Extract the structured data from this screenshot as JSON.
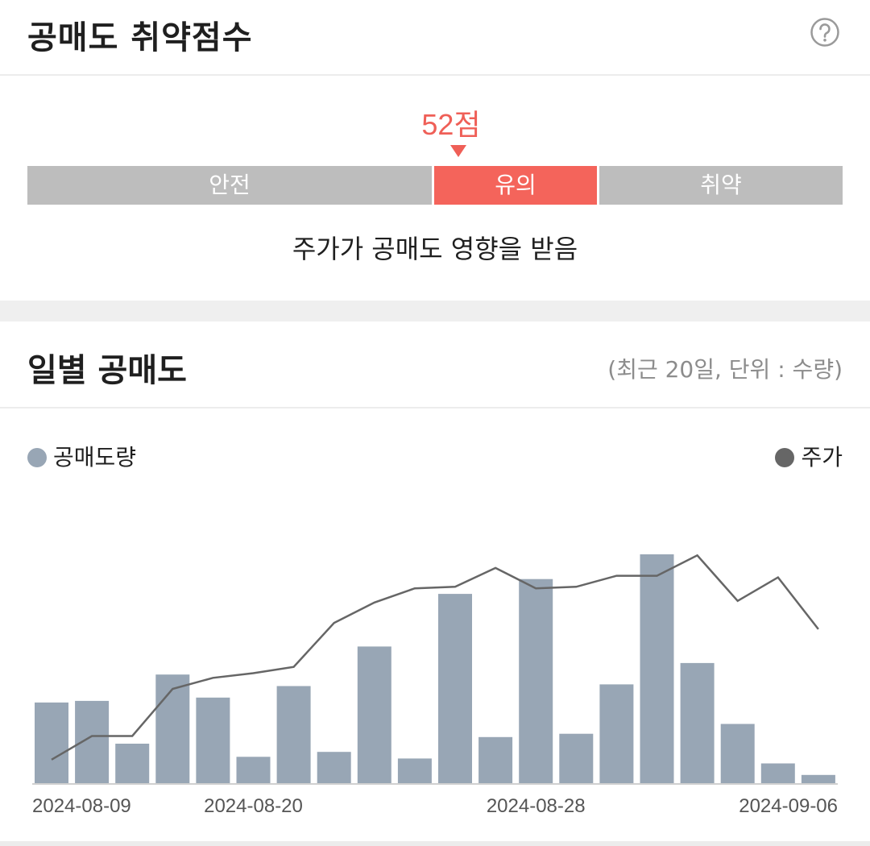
{
  "header": {
    "title": "공매도 취약점수"
  },
  "score": {
    "value_label": "52점",
    "value": 52,
    "segments": [
      {
        "label": "안전",
        "active": false
      },
      {
        "label": "유의",
        "active": true
      },
      {
        "label": "취약",
        "active": false
      }
    ],
    "description": "주가가 공매도 영향을 받음"
  },
  "daily": {
    "title": "일별 공매도",
    "subtitle": "(최근 20일, 단위 : 수량)"
  },
  "legend": {
    "bar_label": "공매도량",
    "line_label": "주가"
  },
  "colors": {
    "bar": "#98a6b5",
    "line": "#666666",
    "accent": "#f4645b",
    "neutral": "#bdbdbd"
  },
  "chart_data": {
    "type": "bar+line",
    "dates_shown": [
      "2024-08-09",
      "2024-08-20",
      "2024-08-28",
      "2024-09-06"
    ],
    "tick_indices": [
      0,
      5,
      12,
      19
    ],
    "series": [
      {
        "name": "공매도량",
        "type": "bar",
        "values": [
          49,
          50,
          24,
          66,
          52,
          16,
          59,
          19,
          83,
          15,
          115,
          28,
          124,
          30,
          60,
          139,
          73,
          36,
          12,
          5
        ]
      },
      {
        "name": "주가",
        "type": "line",
        "values": [
          15,
          30,
          30,
          60,
          67,
          70,
          74,
          102,
          115,
          124,
          125,
          137,
          124,
          125,
          132,
          132,
          145,
          116,
          131,
          98
        ]
      }
    ],
    "bar_ylim": [
      0,
      140
    ],
    "line_ylim": [
      0,
      160
    ]
  }
}
